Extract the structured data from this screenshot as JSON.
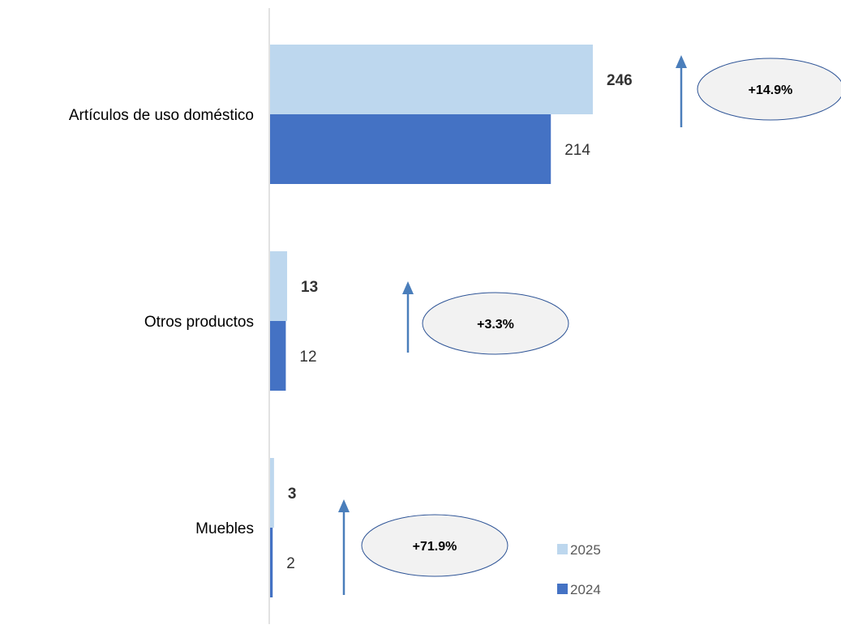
{
  "chart_data": {
    "type": "bar",
    "orientation": "horizontal",
    "categories": [
      "Artículos de uso doméstico",
      "Otros productos",
      "Muebles"
    ],
    "series": [
      {
        "name": "2025",
        "values": [
          246,
          13,
          3
        ],
        "color": "#bdd7ee"
      },
      {
        "name": "2024",
        "values": [
          214,
          12,
          2
        ],
        "color": "#4472c4"
      }
    ],
    "value_labels": {
      "2025": [
        "246",
        "13",
        "3"
      ],
      "2024": [
        "214",
        "12",
        "2"
      ]
    },
    "changes": [
      "+14.9%",
      "+3.3%",
      "+71.9%"
    ],
    "change_direction": [
      "up",
      "up",
      "up"
    ],
    "xlim": [
      0,
      246
    ],
    "grid": false,
    "legend_position": "bottom-right",
    "arrow_color": "#4a7ebb",
    "ellipse_fill": "#f2f2f2"
  }
}
